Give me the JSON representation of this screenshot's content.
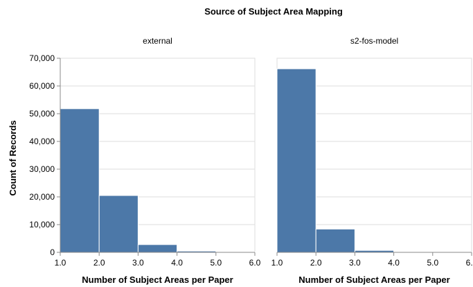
{
  "chart_data": {
    "type": "bar",
    "title": "Source of Subject Area Mapping",
    "xlabel": "Number of Subject Areas per Paper",
    "ylabel": "Count of Records",
    "xlim": [
      1.0,
      6.0
    ],
    "ylim": [
      0,
      70000
    ],
    "x_ticks": [
      "1.0",
      "2.0",
      "3.0",
      "4.0",
      "5.0",
      "6.0"
    ],
    "y_ticks": [
      "0",
      "10,000",
      "20,000",
      "30,000",
      "40,000",
      "50,000",
      "60,000",
      "70,000"
    ],
    "bar_color": "#4c78a8",
    "grid": true,
    "facets": [
      {
        "name": "external",
        "bins": [
          {
            "start": 1,
            "end": 2,
            "count": 51800
          },
          {
            "start": 2,
            "end": 3,
            "count": 20500
          },
          {
            "start": 3,
            "end": 4,
            "count": 2800
          },
          {
            "start": 4,
            "end": 5,
            "count": 450
          },
          {
            "start": 5,
            "end": 6,
            "count": 120
          }
        ]
      },
      {
        "name": "s2-fos-model",
        "bins": [
          {
            "start": 1,
            "end": 2,
            "count": 66200
          },
          {
            "start": 2,
            "end": 3,
            "count": 8400
          },
          {
            "start": 3,
            "end": 4,
            "count": 700
          },
          {
            "start": 4,
            "end": 5,
            "count": 150
          },
          {
            "start": 5,
            "end": 6,
            "count": 80
          }
        ]
      }
    ]
  }
}
